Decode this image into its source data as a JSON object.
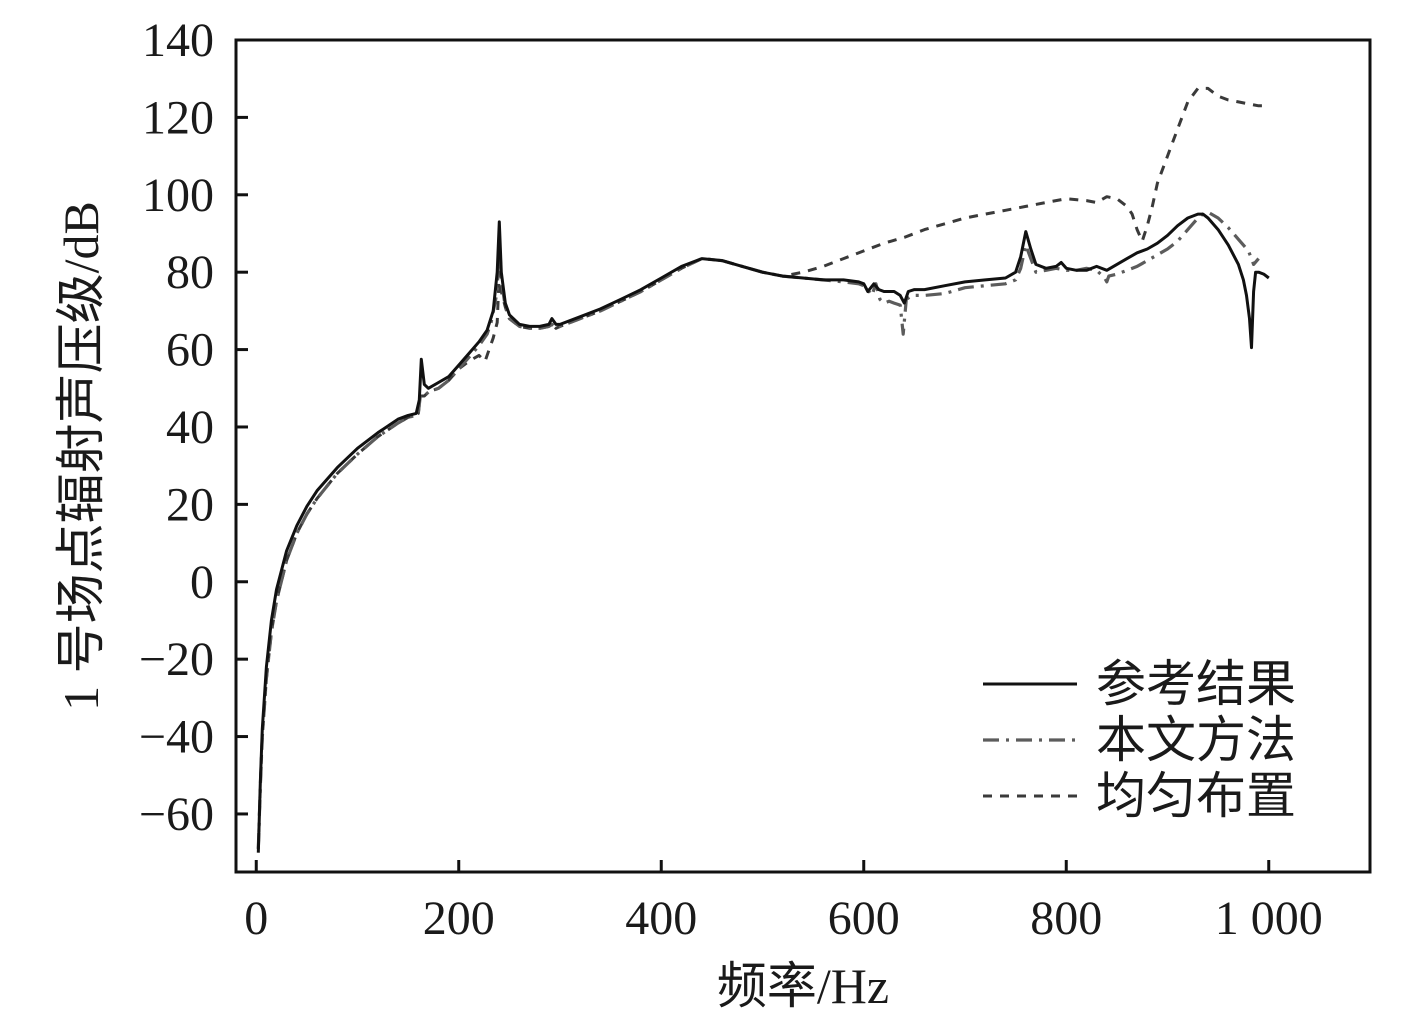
{
  "chart_data": {
    "type": "line",
    "title": "",
    "xlabel": "频率/Hz",
    "ylabel": "1 号场点辐射声压级/dB",
    "xlim": [
      -20,
      1100
    ],
    "ylim": [
      -75,
      140
    ],
    "xticks": [
      0,
      200,
      400,
      600,
      800,
      1000
    ],
    "xtick_labels": [
      "0",
      "200",
      "400",
      "600",
      "800",
      "1 000"
    ],
    "yticks": [
      -60,
      -40,
      -20,
      0,
      20,
      40,
      60,
      80,
      100,
      120,
      140
    ],
    "ytick_labels": [
      "−60",
      "−40",
      "−20",
      "0",
      "20",
      "40",
      "60",
      "80",
      "100",
      "120",
      "140"
    ],
    "grid": false,
    "legend_position": "bottom-right",
    "series": [
      {
        "name": "参考结果",
        "style": "solid",
        "color": "#111111",
        "x": [
          2,
          4,
          6,
          10,
          15,
          20,
          30,
          40,
          50,
          60,
          80,
          100,
          120,
          140,
          150,
          158,
          161,
          163,
          166,
          170,
          180,
          190,
          200,
          210,
          220,
          228,
          234,
          238,
          240,
          242,
          246,
          250,
          260,
          270,
          280,
          289,
          292,
          296,
          300,
          320,
          340,
          360,
          380,
          400,
          420,
          440,
          460,
          480,
          500,
          520,
          540,
          560,
          580,
          595,
          600,
          604,
          610,
          615,
          620,
          630,
          636,
          640,
          644,
          650,
          660,
          680,
          700,
          720,
          740,
          750,
          755,
          760,
          765,
          770,
          780,
          790,
          795,
          800,
          810,
          820,
          830,
          840,
          850,
          860,
          870,
          880,
          890,
          900,
          910,
          920,
          930,
          935,
          940,
          950,
          960,
          970,
          975,
          978,
          981,
          983,
          985,
          987,
          990,
          995,
          1000
        ],
        "y": [
          -70,
          -52,
          -38,
          -22,
          -10,
          -2,
          8,
          14.5,
          19.5,
          23.5,
          29.5,
          34.5,
          38.5,
          42,
          43,
          43.5,
          47,
          57.5,
          51,
          50,
          51.5,
          53,
          56,
          59,
          62,
          65,
          70,
          80,
          93,
          80,
          72,
          69,
          66.5,
          66,
          66,
          66.5,
          68,
          66.5,
          66.5,
          68.5,
          70.5,
          73,
          75.5,
          78.5,
          81.5,
          83.5,
          83,
          81.5,
          80,
          79,
          78.5,
          78,
          78,
          77.5,
          77,
          75,
          77,
          75.5,
          75,
          75,
          74,
          72,
          75,
          75.5,
          75.5,
          76.5,
          77.5,
          78,
          78.5,
          80,
          84,
          90.5,
          86,
          82,
          81,
          81.5,
          82.5,
          81,
          80.5,
          80.5,
          81.5,
          80.5,
          82,
          83.5,
          85,
          86,
          87.5,
          89.5,
          92,
          94,
          95,
          95,
          94,
          91,
          87,
          82,
          78,
          74,
          68,
          60.5,
          75,
          80,
          80,
          79.5,
          78.5
        ]
      },
      {
        "name": "本文方法",
        "style": "dashdot",
        "color": "#5c5c5c",
        "x": [
          2,
          4,
          6,
          10,
          15,
          20,
          30,
          40,
          50,
          60,
          80,
          100,
          120,
          140,
          150,
          158,
          160,
          162,
          166,
          170,
          180,
          190,
          200,
          210,
          220,
          228,
          232,
          238,
          240,
          242,
          246,
          250,
          260,
          270,
          280,
          289,
          292,
          296,
          300,
          320,
          340,
          360,
          380,
          400,
          420,
          440,
          460,
          480,
          500,
          520,
          540,
          560,
          580,
          595,
          600,
          604,
          608,
          612,
          616,
          620,
          625,
          630,
          636,
          639,
          642,
          648,
          660,
          680,
          700,
          720,
          740,
          750,
          755,
          760,
          765,
          770,
          780,
          790,
          800,
          810,
          820,
          830,
          838,
          840,
          842,
          850,
          860,
          870,
          880,
          890,
          900,
          910,
          920,
          930,
          935,
          940,
          950,
          960,
          970,
          980,
          985,
          990
        ],
        "y": [
          -69,
          -53,
          -40,
          -25,
          -13,
          -5,
          5.5,
          12.5,
          17.5,
          21.5,
          28,
          33,
          37.5,
          41,
          42.5,
          43,
          43.5,
          48,
          48,
          49,
          50,
          52,
          55,
          58,
          61,
          64,
          67,
          75,
          90,
          78,
          71,
          68,
          66,
          65.5,
          65.5,
          66,
          66.5,
          65.5,
          66,
          68,
          70,
          72.5,
          75,
          78,
          81,
          83.5,
          83,
          81.5,
          80,
          79,
          78.5,
          78,
          77.5,
          77,
          76.5,
          75.5,
          74,
          77,
          73,
          72,
          72.5,
          72,
          71.5,
          64,
          73,
          74,
          74,
          74.5,
          76,
          76.5,
          77,
          78,
          81,
          87,
          83.5,
          80,
          80.5,
          81,
          80.5,
          80.5,
          81,
          80.5,
          78.5,
          77.5,
          79,
          79.5,
          80.5,
          81.5,
          83,
          84.5,
          86,
          88,
          91,
          94,
          95,
          95.5,
          94,
          91.5,
          88.5,
          85.5,
          82,
          83.5
        ]
      },
      {
        "name": "均匀布置",
        "style": "dashed",
        "color": "#3a3a3a",
        "x": [
          2,
          4,
          6,
          10,
          15,
          20,
          30,
          40,
          50,
          60,
          80,
          100,
          120,
          140,
          150,
          158,
          160,
          162,
          166,
          170,
          180,
          190,
          200,
          210,
          220,
          226,
          230,
          234,
          238,
          240,
          242,
          246,
          250,
          260,
          270,
          280,
          289,
          292,
          296,
          300,
          320,
          340,
          360,
          380,
          400,
          420,
          440,
          460,
          480,
          500,
          520,
          540,
          560,
          580,
          600,
          620,
          640,
          660,
          680,
          700,
          720,
          740,
          760,
          780,
          800,
          820,
          830,
          840,
          850,
          860,
          865,
          870,
          875,
          880,
          885,
          890,
          900,
          910,
          920,
          930,
          940,
          950,
          960,
          970,
          980,
          990,
          995
        ],
        "y": [
          -69,
          -53,
          -40,
          -25,
          -13,
          -5,
          5.5,
          12.5,
          17.5,
          21.5,
          28,
          33,
          37.5,
          41,
          42.5,
          43,
          43.5,
          48,
          48,
          49,
          50,
          52,
          55,
          57,
          58.5,
          57,
          60,
          63,
          67,
          80,
          75,
          71,
          68,
          66,
          65.5,
          65.5,
          66,
          66.5,
          65.5,
          66,
          68,
          70,
          72.5,
          75,
          78,
          81,
          83.5,
          83,
          81.5,
          80,
          79,
          80,
          81.5,
          83.5,
          85.5,
          87.5,
          89,
          91,
          92.5,
          94,
          95,
          96,
          97,
          98,
          99,
          98.5,
          98,
          99.5,
          99,
          97,
          95,
          91,
          88,
          92,
          97,
          103,
          110,
          117,
          124,
          127.5,
          127.5,
          125.5,
          124.5,
          124,
          123.5,
          123,
          123
        ]
      }
    ]
  }
}
